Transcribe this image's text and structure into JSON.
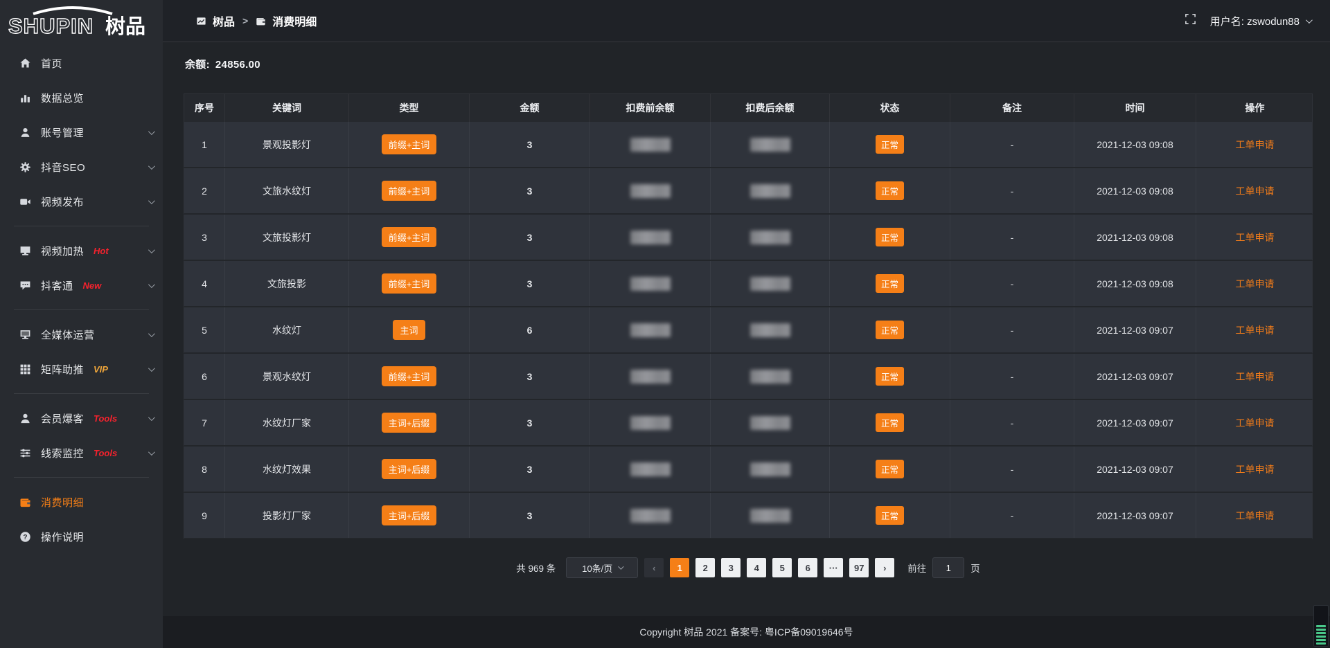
{
  "logo": {
    "text_en": "SHUPIN",
    "text_cn": "树品"
  },
  "topbar": {
    "breadcrumb": {
      "items": [
        {
          "label": "树品",
          "icon": "chart-icon"
        },
        {
          "label": "消费明细",
          "icon": "wallet-icon"
        }
      ],
      "separator": ">"
    },
    "username_label": "用户名: zswodun88"
  },
  "sidebar": {
    "items": [
      {
        "name": "home",
        "label": "首页",
        "icon": "home-icon"
      },
      {
        "name": "data-overview",
        "label": "数据总览",
        "icon": "bar-chart-icon"
      },
      {
        "name": "account-manage",
        "label": "账号管理",
        "icon": "user-icon",
        "chevron": true
      },
      {
        "name": "douyin-seo",
        "label": "抖音SEO",
        "icon": "gear-icon",
        "chevron": true
      },
      {
        "name": "video-publish",
        "label": "视频发布",
        "icon": "video-icon",
        "chevron": true
      },
      {
        "type": "divider"
      },
      {
        "name": "video-heat",
        "label": "视频加热",
        "icon": "monitor-hot-icon",
        "tag": "Hot",
        "tag_color": "#f5222d",
        "chevron": true
      },
      {
        "name": "doukdetong",
        "label": "抖客通",
        "icon": "chat-icon",
        "tag": "New",
        "tag_color": "#f5222d",
        "chevron": true
      },
      {
        "type": "divider"
      },
      {
        "name": "all-media",
        "label": "全媒体运营",
        "icon": "monitor-icon",
        "chevron": true
      },
      {
        "name": "matrix-boost",
        "label": "矩阵助推",
        "icon": "grid-icon",
        "tag": "VIP",
        "tag_color": "#f0a63a",
        "chevron": true
      },
      {
        "type": "divider"
      },
      {
        "name": "member-burst",
        "label": "会员爆客",
        "icon": "member-icon",
        "tag": "Tools",
        "tag_color": "#f5222d",
        "chevron": true
      },
      {
        "name": "clue-monitor",
        "label": "线索监控",
        "icon": "sliders-icon",
        "tag": "Tools",
        "tag_color": "#f5222d",
        "chevron": true
      },
      {
        "type": "divider"
      },
      {
        "name": "consume-detail",
        "label": "消费明细",
        "icon": "wallet-icon",
        "active": true
      },
      {
        "name": "operation-guide",
        "label": "操作说明",
        "icon": "question-icon"
      }
    ]
  },
  "balance": {
    "label": "余额:",
    "value": "24856.00"
  },
  "table": {
    "headers": [
      "序号",
      "关键词",
      "类型",
      "金额",
      "扣费前余额",
      "扣费后余额",
      "状态",
      "备注",
      "时间",
      "操作"
    ],
    "rows": [
      {
        "seq": "1",
        "keyword": "景观投影灯",
        "type": "前缀+主词",
        "amount": "3",
        "status": "正常",
        "remark": "-",
        "time": "2021-12-03 09:08",
        "action": "工单申请"
      },
      {
        "seq": "2",
        "keyword": "文旅水纹灯",
        "type": "前缀+主词",
        "amount": "3",
        "status": "正常",
        "remark": "-",
        "time": "2021-12-03 09:08",
        "action": "工单申请"
      },
      {
        "seq": "3",
        "keyword": "文旅投影灯",
        "type": "前缀+主词",
        "amount": "3",
        "status": "正常",
        "remark": "-",
        "time": "2021-12-03 09:08",
        "action": "工单申请"
      },
      {
        "seq": "4",
        "keyword": "文旅投影",
        "type": "前缀+主词",
        "amount": "3",
        "status": "正常",
        "remark": "-",
        "time": "2021-12-03 09:08",
        "action": "工单申请"
      },
      {
        "seq": "5",
        "keyword": "水纹灯",
        "type": "主词",
        "amount": "6",
        "status": "正常",
        "remark": "-",
        "time": "2021-12-03 09:07",
        "action": "工单申请"
      },
      {
        "seq": "6",
        "keyword": "景观水纹灯",
        "type": "前缀+主词",
        "amount": "3",
        "status": "正常",
        "remark": "-",
        "time": "2021-12-03 09:07",
        "action": "工单申请"
      },
      {
        "seq": "7",
        "keyword": "水纹灯厂家",
        "type": "主词+后缀",
        "amount": "3",
        "status": "正常",
        "remark": "-",
        "time": "2021-12-03 09:07",
        "action": "工单申请"
      },
      {
        "seq": "8",
        "keyword": "水纹灯效果",
        "type": "主词+后缀",
        "amount": "3",
        "status": "正常",
        "remark": "-",
        "time": "2021-12-03 09:07",
        "action": "工单申请"
      },
      {
        "seq": "9",
        "keyword": "投影灯厂家",
        "type": "主词+后缀",
        "amount": "3",
        "status": "正常",
        "remark": "-",
        "time": "2021-12-03 09:07",
        "action": "工单申请"
      }
    ],
    "redacted_columns": [
      "扣费前余额",
      "扣费后余额"
    ]
  },
  "pagination": {
    "total": "共 969 条",
    "page_size": "10条/页",
    "prev": "‹",
    "pages": [
      "1",
      "2",
      "3",
      "4",
      "5",
      "6",
      "···",
      "97"
    ],
    "active_page": "1",
    "next": "›",
    "goto_label": "前往",
    "goto_value": "1",
    "goto_suffix": "页"
  },
  "footer": {
    "copyright": "Copyright 树品 2021 备案号: 粤ICP备09019646号"
  },
  "colors": {
    "accent": "#f57f17",
    "hot": "#f5222d",
    "vip": "#f0a63a"
  }
}
